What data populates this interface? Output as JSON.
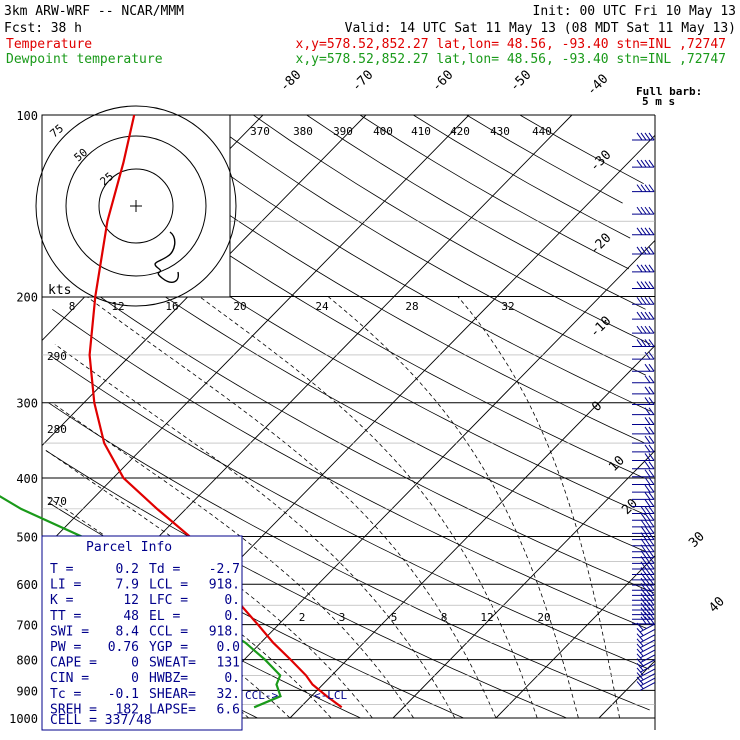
{
  "header": {
    "model": "3km ARW-WRF -- NCAR/MMM",
    "init": "Init: 00 UTC Fri 10 May 13",
    "fcst_label": "Fcst:",
    "fcst_value": "38 h",
    "valid": "Valid: 14 UTC Sat 11 May 13 (08 MDT Sat 11 May 13)",
    "line1_label": "Temperature",
    "line1_info": "x,y=578.52,852.27   lat,lon= 48.56, -93.40   stn=INL ,72747",
    "line2_label": "Dewpoint temperature",
    "line2_info": "x,y=578.52,852.27   lat,lon= 48.56, -93.40   stn=INL ,72747",
    "colors": {
      "temperature": "#e00000",
      "dewpoint": "#1a9a1a",
      "panel_text": "#00008b"
    }
  },
  "chart_data": {
    "type": "line",
    "diagram": "skew-T log-p",
    "y_axis_ticks": [
      "100",
      "200",
      "300",
      "400",
      "500",
      "600",
      "700",
      "800",
      "900",
      "1000"
    ],
    "isotherm_labels": [
      "-80",
      "-70",
      "-60",
      "-50",
      "-40",
      "-30",
      "-20",
      "-10",
      "0",
      "10",
      "20",
      "30",
      "40"
    ],
    "theta_labels": [
      "370",
      "380",
      "390",
      "400",
      "410",
      "420",
      "430",
      "440"
    ],
    "mixing_ratio_labels_upper": [
      "8",
      "12",
      "16",
      "20",
      "24",
      "28",
      "32"
    ],
    "mixing_ratio_labels_lower": [
      "2",
      "3",
      "5",
      "8",
      "12",
      "20"
    ],
    "theta_side_labels": [
      "290",
      "280",
      "270"
    ],
    "kts_label": "kts",
    "hodograph_ring_labels": [
      "25",
      "50",
      "75"
    ],
    "series": [
      {
        "name": "Temperature",
        "color": "#e00000",
        "points": [
          [
            960,
            4.0
          ],
          [
            920,
            1.5
          ],
          [
            880,
            -1.0
          ],
          [
            850,
            -2.5
          ],
          [
            800,
            -5.5
          ],
          [
            750,
            -8.8
          ],
          [
            700,
            -12.0
          ],
          [
            650,
            -15.5
          ],
          [
            600,
            -19.0
          ],
          [
            550,
            -22.8
          ],
          [
            500,
            -27.0
          ],
          [
            450,
            -32.8
          ],
          [
            400,
            -39.0
          ],
          [
            350,
            -44.2
          ],
          [
            300,
            -49.0
          ],
          [
            250,
            -54.0
          ],
          [
            200,
            -59.0
          ],
          [
            150,
            -65.0
          ],
          [
            120,
            -69.0
          ],
          [
            100,
            -72.5
          ]
        ]
      },
      {
        "name": "Dewpoint temperature",
        "color": "#1a9a1a",
        "points": [
          [
            960,
            -4.5
          ],
          [
            920,
            -3.0
          ],
          [
            880,
            -4.5
          ],
          [
            850,
            -5.0
          ],
          [
            800,
            -8.0
          ],
          [
            750,
            -11.5
          ],
          [
            700,
            -16.0
          ],
          [
            650,
            -20.5
          ],
          [
            600,
            -25.0
          ],
          [
            550,
            -31.5
          ],
          [
            500,
            -37.5
          ],
          [
            450,
            -46.0
          ],
          [
            400,
            -54.0
          ],
          [
            350,
            -60.0
          ],
          [
            300,
            -65.0
          ],
          [
            250,
            -70.0
          ],
          [
            200,
            -76.0
          ],
          [
            150,
            -83.0
          ],
          [
            120,
            -85.5
          ],
          [
            100,
            -86.5
          ]
        ]
      }
    ],
    "annotations": {
      "ccl_marker": "CCL->",
      "lcl_marker": "<-LCL",
      "barb_legend_title": "Full barb:",
      "barb_legend_value": "5 m s"
    }
  },
  "parcel_info": {
    "title": "Parcel Info",
    "rows": [
      {
        "l1": "T  =",
        "v1": "0.2",
        "l2": "Td =",
        "v2": "-2.7"
      },
      {
        "l1": "LI =",
        "v1": "7.9",
        "l2": "LCL =",
        "v2": "918."
      },
      {
        "l1": "K  =",
        "v1": "12",
        "l2": "LFC =",
        "v2": "0."
      },
      {
        "l1": "TT =",
        "v1": "48",
        "l2": "EL  =",
        "v2": "0."
      },
      {
        "l1": "SWI =",
        "v1": "8.4",
        "l2": "CCL =",
        "v2": "918."
      },
      {
        "l1": "PW  =",
        "v1": "0.76",
        "l2": "YGP =",
        "v2": "0.0"
      },
      {
        "l1": "CAPE =",
        "v1": "0",
        "l2": "SWEAT=",
        "v2": "131"
      },
      {
        "l1": "CIN  =",
        "v1": "0",
        "l2": "HWBZ=",
        "v2": "0."
      },
      {
        "l1": "Tc   =",
        "v1": "-0.1",
        "l2": "SHEAR=",
        "v2": "32."
      },
      {
        "l1": "SREH =",
        "v1": "182",
        "l2": "LAPSE=",
        "v2": "6.6"
      }
    ],
    "cell": "CELL = 337/48"
  }
}
